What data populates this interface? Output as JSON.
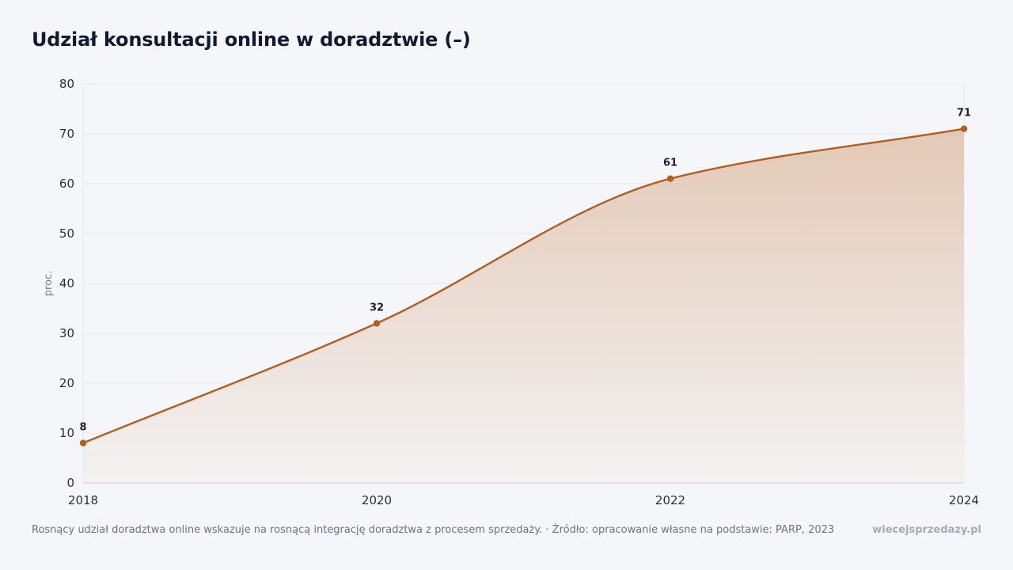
{
  "title": "Udział konsultacji online w doradztwie (–)",
  "footer": {
    "note": "Rosnący udział doradztwa online wskazuje na rosnącą integrację doradztwa z procesem sprzedaży. · Źródło: opracowanie własne na podstawie: PARP, 2023",
    "brand": "wiecejsprzedazy.pl"
  },
  "colors": {
    "line": "#b45e1c",
    "fill_top": "#e2c6b2",
    "fill_bottom": "#f3f1f1",
    "grid": "#e6e8ee",
    "axis": "#e0cfc4"
  },
  "chart_data": {
    "type": "area",
    "x": [
      2018,
      2020,
      2022,
      2024
    ],
    "values": [
      8,
      32,
      61,
      71
    ],
    "data_labels": [
      "8",
      "32",
      "61",
      "71"
    ],
    "x_ticks": [
      "2018",
      "2020",
      "2022",
      "2024"
    ],
    "y_ticks": [
      "0",
      "10",
      "20",
      "30",
      "40",
      "50",
      "60",
      "70",
      "80"
    ],
    "ylabel": "proc.",
    "xlim": [
      2018,
      2024
    ],
    "ylim": [
      0,
      80
    ],
    "grid": true
  }
}
